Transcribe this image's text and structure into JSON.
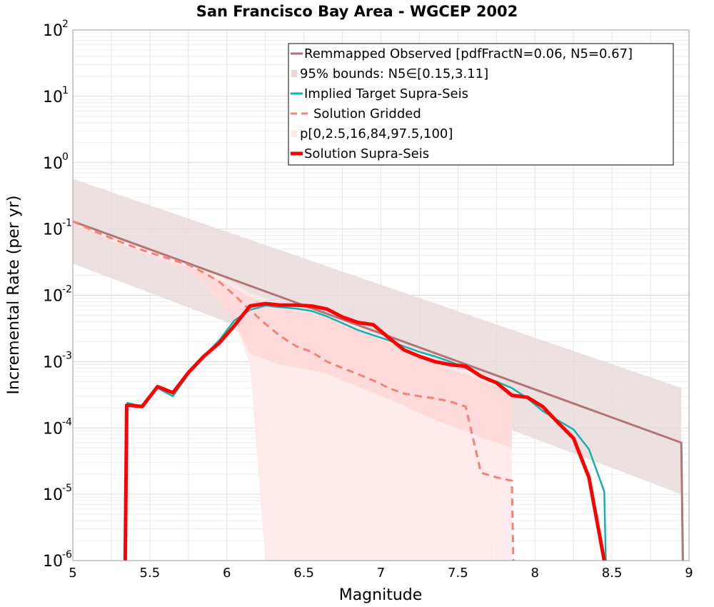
{
  "chart_data": {
    "type": "line",
    "title": "San Francisco Bay Area - WGCEP 2002",
    "xlabel": "Magnitude",
    "ylabel": "Incremental Rate (per yr)",
    "xlim": [
      5,
      9
    ],
    "ylim": [
      1e-06,
      100
    ],
    "yscale": "log",
    "grid": true,
    "legend_position": "top-right",
    "x_ticks": [
      "5",
      "5.5",
      "6",
      "6.5",
      "7",
      "7.5",
      "8",
      "8.5",
      "9"
    ],
    "y_ticks": [
      {
        "base": "10",
        "exp": "-6"
      },
      {
        "base": "10",
        "exp": "-5"
      },
      {
        "base": "10",
        "exp": "-4"
      },
      {
        "base": "10",
        "exp": "-3"
      },
      {
        "base": "10",
        "exp": "-2"
      },
      {
        "base": "10",
        "exp": "-1"
      },
      {
        "base": "10",
        "exp": "0"
      },
      {
        "base": "10",
        "exp": "1"
      },
      {
        "base": "10",
        "exp": "2"
      }
    ],
    "colors": {
      "observed": "#b07575",
      "bounds_fill": "#e8d8d8",
      "target": "#17b0b0",
      "gridded": "#f88078",
      "percentile_fill_outer": "#ffe8e8",
      "percentile_fill_inner": "#ffd4d4",
      "solution": "#ff0000"
    },
    "legend": [
      {
        "label": "Remmapped Observed [pdfFractN=0.06, N5=0.67]",
        "style": "line",
        "color": "#b07575"
      },
      {
        "label": "95% bounds: N5∈[0.15,3.11]",
        "style": "box",
        "color": "#e8d8d8"
      },
      {
        "label": "Implied Target Supra-Seis",
        "style": "line",
        "color": "#17b0b0"
      },
      {
        "label": "Solution Gridded",
        "style": "dash",
        "color": "#f88078"
      },
      {
        "label": "p[0,2.5,16,84,97.5,100]",
        "style": "box",
        "color": "#ffe8e8"
      },
      {
        "label": "Solution Supra-Seis",
        "style": "thick",
        "color": "#ff0000"
      }
    ],
    "series": [
      {
        "name": "Remmapped Observed [pdfFractN=0.06, N5=0.67]",
        "x": [
          5.0,
          8.95,
          8.96
        ],
        "y": [
          0.13,
          6e-05,
          1e-06
        ]
      },
      {
        "name": "95% bounds: N5∈[0.15,3.11]",
        "x": [
          5.0,
          8.95
        ],
        "upper": [
          0.57,
          0.0004
        ],
        "lower": [
          0.03,
          1e-05
        ]
      },
      {
        "name": "Implied Target Supra-Seis",
        "x": [
          5.35,
          5.45,
          5.55,
          5.65,
          5.75,
          5.85,
          5.95,
          6.05,
          6.15,
          6.25,
          6.35,
          6.45,
          6.55,
          6.65,
          6.75,
          6.85,
          6.95,
          7.05,
          7.15,
          7.25,
          7.35,
          7.45,
          7.55,
          7.65,
          7.75,
          7.85,
          7.95,
          8.05,
          8.15,
          8.25,
          8.35,
          8.45,
          8.46
        ],
        "y": [
          0.00024,
          0.00021,
          0.0004,
          0.0003,
          0.00065,
          0.0012,
          0.0021,
          0.0042,
          0.006,
          0.007,
          0.0066,
          0.0063,
          0.0058,
          0.0048,
          0.0038,
          0.003,
          0.0025,
          0.0021,
          0.0017,
          0.0014,
          0.0012,
          0.001,
          0.0008,
          0.0006,
          0.0005,
          0.0004,
          0.00028,
          0.00018,
          0.00013,
          9.5e-05,
          4.8e-05,
          1.1e-05,
          1e-06
        ]
      },
      {
        "name": "Solution Gridded",
        "x": [
          5.0,
          5.15,
          5.3,
          5.45,
          5.6,
          5.75,
          5.85,
          5.95,
          6.05,
          6.15,
          6.25,
          6.35,
          6.45,
          6.55,
          6.65,
          6.75,
          6.85,
          6.95,
          7.05,
          7.15,
          7.25,
          7.35,
          7.45,
          7.55,
          7.65,
          7.75,
          7.85,
          7.86
        ],
        "y": [
          0.13,
          0.09,
          0.065,
          0.048,
          0.037,
          0.029,
          0.022,
          0.016,
          0.01,
          0.006,
          0.0037,
          0.0024,
          0.0017,
          0.0014,
          0.001,
          0.0008,
          0.00065,
          0.00052,
          0.0004,
          0.00033,
          0.0003,
          0.00028,
          0.00025,
          0.00021,
          2.1e-05,
          1.8e-05,
          1.6e-05,
          1e-06
        ]
      },
      {
        "name": "p[0,2.5,16,84,97.5,100]",
        "x": [
          5.0,
          5.15,
          5.3,
          5.45,
          5.6,
          5.75,
          5.85,
          5.95,
          6.05,
          6.15,
          6.25,
          6.35,
          6.45,
          6.55,
          6.65,
          6.75,
          6.85,
          6.95,
          7.05,
          7.15,
          7.25,
          7.35,
          7.45,
          7.55,
          7.65,
          7.75,
          7.85
        ],
        "upper": [
          0.14,
          0.1,
          0.07,
          0.052,
          0.04,
          0.031,
          0.026,
          0.02,
          0.015,
          0.011,
          0.009,
          0.0075,
          0.0068,
          0.0062,
          0.0055,
          0.0043,
          0.0035,
          0.0028,
          0.0023,
          0.0018,
          0.0014,
          0.0011,
          0.0009,
          0.00075,
          0.0006,
          0.0005,
          0.00042
        ],
        "lower": [
          0.11,
          0.08,
          0.057,
          0.043,
          0.032,
          0.023,
          0.015,
          0.008,
          0.004,
          0.0009,
          1e-06,
          1e-06,
          1e-06,
          1e-06,
          1e-06,
          1e-06,
          1e-06,
          1e-06,
          1e-06,
          1e-06,
          1e-06,
          1e-06,
          1e-06,
          1e-06,
          1e-06,
          1e-06,
          1e-06
        ]
      },
      {
        "name": "Solution Supra-Seis",
        "x": [
          5.34,
          5.35,
          5.45,
          5.55,
          5.65,
          5.75,
          5.85,
          5.95,
          6.05,
          6.15,
          6.25,
          6.35,
          6.45,
          6.55,
          6.65,
          6.75,
          6.85,
          6.95,
          7.05,
          7.15,
          7.25,
          7.35,
          7.45,
          7.55,
          7.65,
          7.75,
          7.85,
          7.95,
          8.05,
          8.15,
          8.25,
          8.35,
          8.45
        ],
        "y": [
          1e-06,
          0.00022,
          0.00021,
          0.00042,
          0.00034,
          0.00068,
          0.0012,
          0.0019,
          0.0035,
          0.0069,
          0.0075,
          0.0071,
          0.0071,
          0.0069,
          0.0062,
          0.0047,
          0.0039,
          0.0036,
          0.0023,
          0.0015,
          0.0012,
          0.001,
          0.0009,
          0.00085,
          0.0006,
          0.00048,
          0.00031,
          0.00029,
          0.00021,
          0.00012,
          7e-05,
          1.8e-05,
          1e-06
        ]
      }
    ]
  }
}
